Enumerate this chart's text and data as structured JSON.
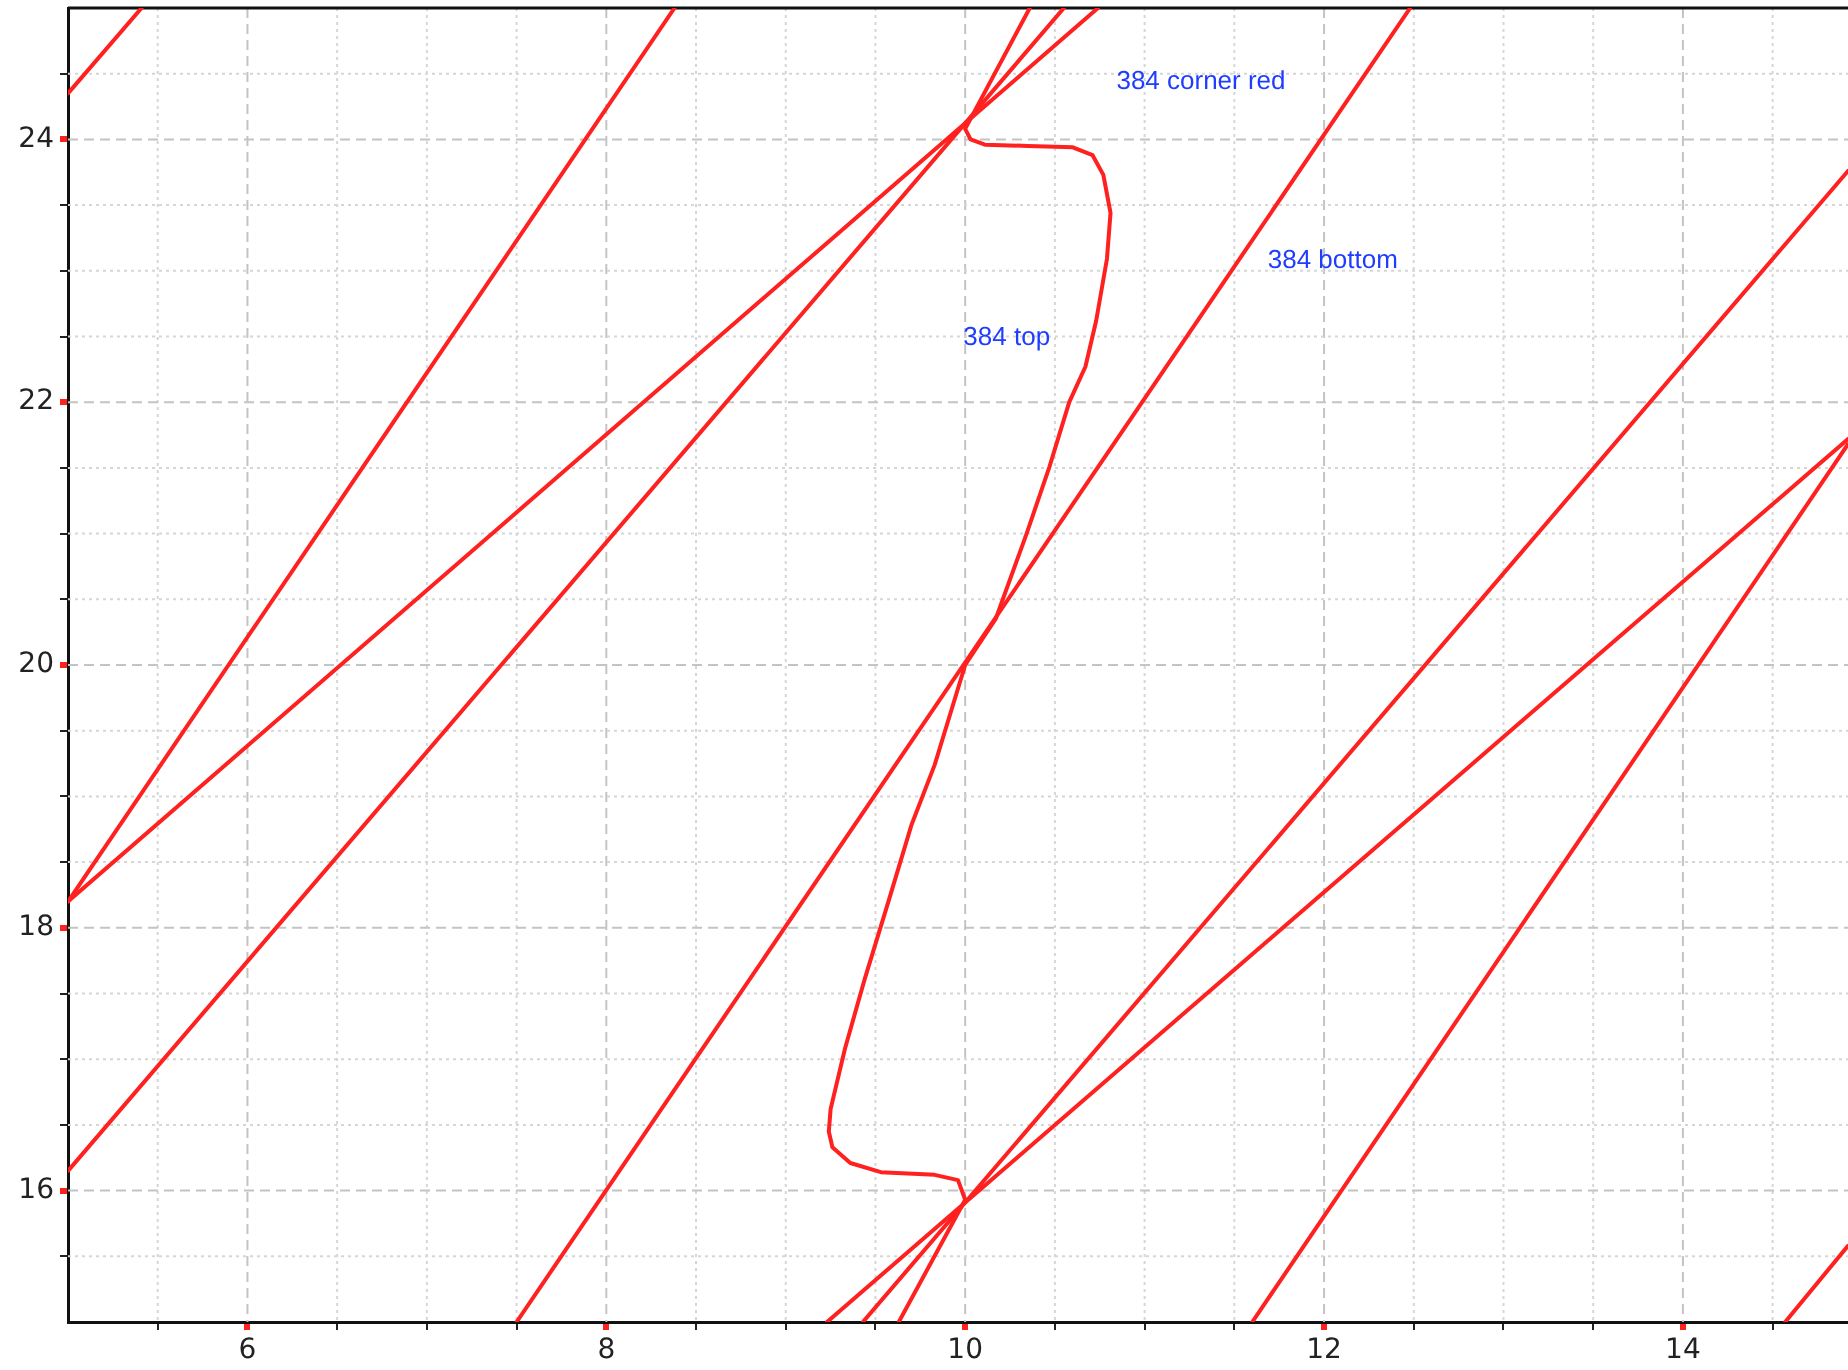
{
  "chart_data": {
    "type": "line",
    "series": [
      {
        "color": "#ff2020",
        "x": [
          5,
          5.41
        ],
        "values": [
          24.35,
          25
        ]
      },
      {
        "color": "#ff2020",
        "x": [
          5,
          8.38
        ],
        "values": [
          18.2,
          25
        ]
      },
      {
        "color": "#ff2020",
        "x": [
          5,
          10.74
        ],
        "values": [
          18.2,
          25
        ]
      },
      {
        "color": "#ff2020",
        "x": [
          5,
          10.55
        ],
        "values": [
          16.15,
          25
        ]
      },
      {
        "color": "#ff2020",
        "x": [
          7.5,
          12.48
        ],
        "values": [
          15,
          25
        ]
      },
      {
        "color": "#ff2020",
        "x": [
          10.36,
          10.0,
          10.03,
          10.11,
          10.35,
          10.6,
          10.71,
          10.77,
          10.81,
          10.79,
          10.73,
          10.67,
          10.58,
          10.47,
          10.34,
          10.17,
          10.0,
          9.83,
          9.7,
          9.57,
          9.44,
          9.33,
          9.25,
          9.24,
          9.26,
          9.36,
          9.53,
          9.83,
          9.96,
          10.0,
          9.63
        ],
        "values": [
          25,
          24.08,
          24.0,
          23.96,
          23.95,
          23.94,
          23.88,
          23.73,
          23.44,
          23.09,
          22.62,
          22.27,
          22.0,
          21.51,
          20.99,
          20.35,
          20.0,
          19.24,
          18.78,
          18.19,
          17.61,
          17.08,
          16.62,
          16.45,
          16.33,
          16.21,
          16.14,
          16.12,
          16.08,
          15.93,
          15
        ]
      },
      {
        "color": "#ff2020",
        "x": [
          9.43,
          14.92
        ],
        "values": [
          15,
          23.76
        ]
      },
      {
        "color": "#ff2020",
        "x": [
          9.23,
          14.92
        ],
        "values": [
          15,
          21.72
        ]
      },
      {
        "color": "#ff2020",
        "x": [
          11.6,
          14.92
        ],
        "values": [
          15,
          21.68
        ]
      },
      {
        "color": "#ff2020",
        "x": [
          14.57,
          14.92
        ],
        "values": [
          15,
          15.58
        ]
      }
    ],
    "xlim": [
      5,
      14.92
    ],
    "ylim": [
      15,
      25
    ],
    "xticks": [
      {
        "value": 5.5,
        "label": null
      },
      6,
      {
        "value": 6.5,
        "label": null
      },
      {
        "value": 7,
        "label": null
      },
      {
        "value": 7.5,
        "label": null
      },
      8,
      {
        "value": 8.5,
        "label": null
      },
      {
        "value": 9,
        "label": null
      },
      {
        "value": 9.5,
        "label": null
      },
      10,
      {
        "value": 10.5,
        "label": null
      },
      {
        "value": 11,
        "label": null
      },
      {
        "value": 11.5,
        "label": null
      },
      12,
      {
        "value": 12.5,
        "label": null
      },
      {
        "value": 13,
        "label": null
      },
      {
        "value": 13.5,
        "label": null
      },
      14,
      {
        "value": 14.5,
        "label": null
      }
    ],
    "yticks": [
      {
        "value": 15.5,
        "label": null
      },
      16,
      {
        "value": 16.5,
        "label": null
      },
      {
        "value": 17,
        "label": null
      },
      {
        "value": 17.5,
        "label": null
      },
      18,
      {
        "value": 18.5,
        "label": null
      },
      {
        "value": 19,
        "label": null
      },
      {
        "value": 19.5,
        "label": null
      },
      20,
      {
        "value": 20.5,
        "label": null
      },
      {
        "value": 21,
        "label": null
      },
      {
        "value": 21.5,
        "label": null
      },
      22,
      {
        "value": 22.5,
        "label": null
      },
      {
        "value": 23,
        "label": null
      },
      {
        "value": 23.5,
        "label": null
      },
      24,
      {
        "value": 24.5,
        "label": null
      }
    ],
    "grid": true,
    "annotations": [
      "384 corner red",
      "384 bottom",
      "384 top"
    ]
  }
}
